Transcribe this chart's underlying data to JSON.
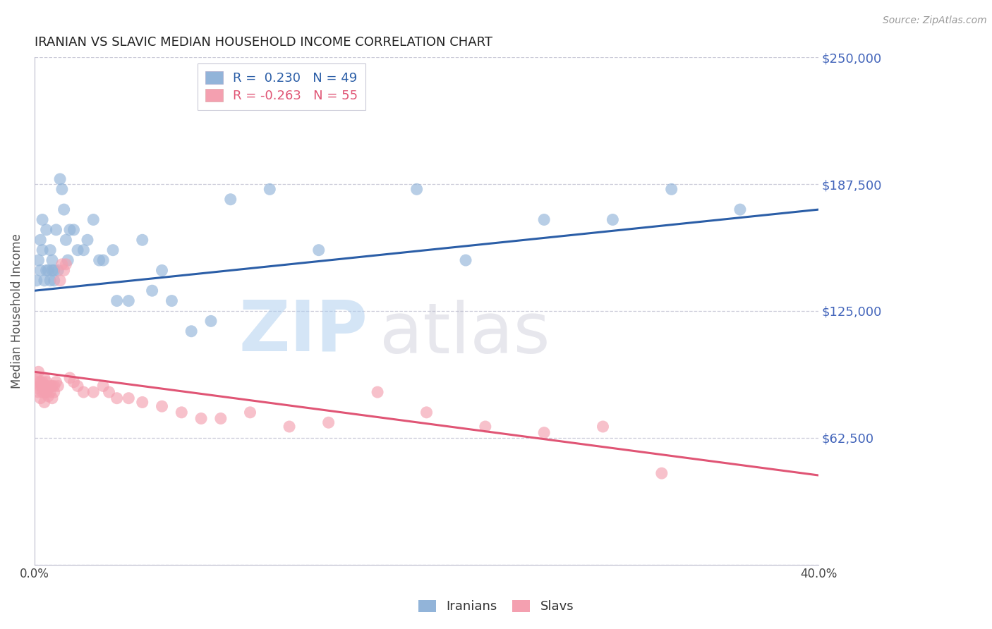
{
  "title": "IRANIAN VS SLAVIC MEDIAN HOUSEHOLD INCOME CORRELATION CHART",
  "source": "Source: ZipAtlas.com",
  "ylabel": "Median Household Income",
  "xlim": [
    0.0,
    0.4
  ],
  "ylim": [
    0,
    250000
  ],
  "yticks": [
    0,
    62500,
    125000,
    187500,
    250000
  ],
  "ytick_labels": [
    "",
    "$62,500",
    "$125,000",
    "$187,500",
    "$250,000"
  ],
  "iranians_label": "Iranians",
  "slavs_label": "Slavs",
  "legend_text_iranian": "R =  0.230   N = 49",
  "legend_text_slav": "R = -0.263   N = 55",
  "blue_color": "#92B4D9",
  "blue_line_color": "#2B5EA7",
  "pink_color": "#F4A0B0",
  "pink_line_color": "#E05575",
  "background_color": "#FFFFFF",
  "grid_color": "#CACAD8",
  "title_color": "#222222",
  "right_label_color": "#4466BB",
  "iranians_x": [
    0.001,
    0.002,
    0.003,
    0.003,
    0.004,
    0.004,
    0.005,
    0.006,
    0.006,
    0.007,
    0.008,
    0.008,
    0.009,
    0.009,
    0.01,
    0.01,
    0.011,
    0.012,
    0.013,
    0.014,
    0.015,
    0.016,
    0.017,
    0.018,
    0.02,
    0.022,
    0.025,
    0.027,
    0.03,
    0.033,
    0.035,
    0.04,
    0.042,
    0.048,
    0.055,
    0.06,
    0.065,
    0.07,
    0.08,
    0.09,
    0.1,
    0.12,
    0.145,
    0.195,
    0.22,
    0.26,
    0.295,
    0.325,
    0.36
  ],
  "iranians_y": [
    140000,
    150000,
    145000,
    160000,
    155000,
    170000,
    140000,
    145000,
    165000,
    145000,
    140000,
    155000,
    145000,
    150000,
    140000,
    145000,
    165000,
    145000,
    190000,
    185000,
    175000,
    160000,
    150000,
    165000,
    165000,
    155000,
    155000,
    160000,
    170000,
    150000,
    150000,
    155000,
    130000,
    130000,
    160000,
    135000,
    145000,
    130000,
    115000,
    120000,
    180000,
    185000,
    155000,
    185000,
    150000,
    170000,
    170000,
    185000,
    175000
  ],
  "slavs_x": [
    0.001,
    0.001,
    0.002,
    0.002,
    0.002,
    0.003,
    0.003,
    0.003,
    0.004,
    0.004,
    0.004,
    0.005,
    0.005,
    0.005,
    0.005,
    0.006,
    0.006,
    0.006,
    0.007,
    0.007,
    0.008,
    0.008,
    0.009,
    0.009,
    0.01,
    0.01,
    0.011,
    0.012,
    0.013,
    0.014,
    0.015,
    0.016,
    0.018,
    0.02,
    0.022,
    0.025,
    0.03,
    0.035,
    0.038,
    0.042,
    0.048,
    0.055,
    0.065,
    0.075,
    0.085,
    0.095,
    0.11,
    0.13,
    0.15,
    0.175,
    0.2,
    0.23,
    0.26,
    0.29,
    0.32
  ],
  "slavs_y": [
    92000,
    87000,
    90000,
    85000,
    95000,
    88000,
    90000,
    82000,
    88000,
    90000,
    85000,
    92000,
    88000,
    85000,
    80000,
    88000,
    85000,
    90000,
    87000,
    83000,
    88000,
    85000,
    82000,
    88000,
    88000,
    85000,
    90000,
    88000,
    140000,
    148000,
    145000,
    148000,
    92000,
    90000,
    88000,
    85000,
    85000,
    88000,
    85000,
    82000,
    82000,
    80000,
    78000,
    75000,
    72000,
    72000,
    75000,
    68000,
    70000,
    85000,
    75000,
    68000,
    65000,
    68000,
    45000
  ],
  "iran_line_x0": 0.0,
  "iran_line_y0": 135000,
  "iran_line_x1": 0.4,
  "iran_line_y1": 175000,
  "slav_line_x0": 0.0,
  "slav_line_y0": 95000,
  "slav_line_x1": 0.4,
  "slav_line_y1": 44000
}
